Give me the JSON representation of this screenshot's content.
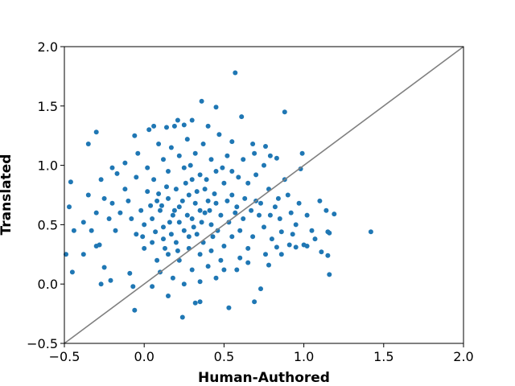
{
  "chart_data": {
    "type": "scatter",
    "title": "",
    "xlabel": "Human-Authored",
    "ylabel": "Translated",
    "xlim": [
      -0.5,
      2.0
    ],
    "ylim": [
      -0.5,
      2.0
    ],
    "xticks": [
      "−0.5",
      "0.0",
      "0.5",
      "1.0",
      "1.5",
      "2.0"
    ],
    "yticks": [
      "−0.5",
      "0.0",
      "0.5",
      "1.0",
      "1.5",
      "2.0"
    ],
    "xtick_values": [
      -0.5,
      0.0,
      0.5,
      1.0,
      1.5,
      2.0
    ],
    "ytick_values": [
      -0.5,
      0.0,
      0.5,
      1.0,
      1.5,
      2.0
    ],
    "grid": false,
    "marker_color": "#1f77b4",
    "reference_line": {
      "from": [
        -0.5,
        -0.5
      ],
      "to": [
        2.0,
        2.0
      ],
      "color": "#808080"
    },
    "series": [
      {
        "values": [
          [
            0.57,
            1.78
          ],
          [
            0.36,
            1.54
          ],
          [
            0.45,
            1.49
          ],
          [
            0.61,
            1.41
          ],
          [
            0.88,
            1.45
          ],
          [
            0.19,
            1.33
          ],
          [
            0.06,
            1.33
          ],
          [
            0.03,
            1.3
          ],
          [
            -0.06,
            1.25
          ],
          [
            -0.3,
            1.28
          ],
          [
            -0.35,
            1.18
          ],
          [
            0.21,
            1.38
          ],
          [
            0.14,
            1.32
          ],
          [
            0.25,
            1.34
          ],
          [
            0.3,
            1.38
          ],
          [
            0.4,
            1.33
          ],
          [
            0.47,
            1.26
          ],
          [
            0.55,
            1.2
          ],
          [
            0.68,
            1.18
          ],
          [
            0.76,
            1.16
          ],
          [
            0.83,
            1.06
          ],
          [
            0.99,
            1.1
          ],
          [
            0.98,
            0.97
          ],
          [
            1.1,
            0.7
          ],
          [
            1.14,
            0.62
          ],
          [
            1.19,
            0.59
          ],
          [
            1.15,
            0.44
          ],
          [
            1.16,
            0.43
          ],
          [
            1.07,
            0.38
          ],
          [
            1.02,
            0.32
          ],
          [
            1.0,
            0.33
          ],
          [
            0.95,
            0.31
          ],
          [
            0.91,
            0.33
          ],
          [
            0.86,
            0.44
          ],
          [
            0.83,
            0.31
          ],
          [
            1.11,
            0.27
          ],
          [
            1.15,
            0.24
          ],
          [
            1.16,
            0.08
          ],
          [
            0.78,
            0.16
          ],
          [
            0.73,
            -0.04
          ],
          [
            0.69,
            -0.15
          ],
          [
            0.53,
            -0.2
          ],
          [
            0.35,
            -0.15
          ],
          [
            0.32,
            -0.16
          ],
          [
            0.24,
            -0.28
          ],
          [
            0.15,
            -0.1
          ],
          [
            0.05,
            -0.02
          ],
          [
            -0.06,
            -0.22
          ],
          [
            -0.07,
            -0.02
          ],
          [
            -0.21,
            0.03
          ],
          [
            -0.27,
            0.0
          ],
          [
            -0.09,
            0.09
          ],
          [
            -0.38,
            0.25
          ],
          [
            -0.45,
            0.1
          ],
          [
            -0.49,
            0.25
          ],
          [
            -0.44,
            0.45
          ],
          [
            -0.47,
            0.65
          ],
          [
            -0.46,
            0.86
          ],
          [
            -0.35,
            0.75
          ],
          [
            -0.3,
            0.32
          ],
          [
            -0.28,
            0.33
          ],
          [
            -0.25,
            0.14
          ],
          [
            -0.2,
            0.68
          ],
          [
            -0.17,
            0.93
          ],
          [
            -0.12,
            1.02
          ],
          [
            1.42,
            0.44
          ],
          [
            0.4,
            0.7
          ],
          [
            0.35,
            0.62
          ],
          [
            0.3,
            0.55
          ],
          [
            0.28,
            0.75
          ],
          [
            0.22,
            0.65
          ],
          [
            0.18,
            0.58
          ],
          [
            0.1,
            0.62
          ],
          [
            0.12,
            0.48
          ],
          [
            0.25,
            0.45
          ],
          [
            0.33,
            0.42
          ],
          [
            0.42,
            0.5
          ],
          [
            0.48,
            0.58
          ],
          [
            0.45,
            0.68
          ],
          [
            0.38,
            0.8
          ],
          [
            0.3,
            0.88
          ],
          [
            0.2,
            0.8
          ],
          [
            0.15,
            0.72
          ],
          [
            0.08,
            0.7
          ],
          [
            0.05,
            0.55
          ],
          [
            0.0,
            0.5
          ],
          [
            -0.02,
            0.62
          ],
          [
            0.02,
            0.78
          ],
          [
            0.06,
            0.88
          ],
          [
            0.15,
            0.95
          ],
          [
            0.25,
            0.98
          ],
          [
            0.35,
            0.92
          ],
          [
            0.5,
            0.85
          ],
          [
            0.55,
            0.75
          ],
          [
            0.58,
            0.65
          ],
          [
            0.62,
            0.55
          ],
          [
            0.6,
            0.45
          ],
          [
            0.55,
            0.4
          ],
          [
            0.5,
            0.32
          ],
          [
            0.42,
            0.28
          ],
          [
            0.35,
            0.25
          ],
          [
            0.28,
            0.3
          ],
          [
            0.2,
            0.35
          ],
          [
            0.12,
            0.38
          ],
          [
            0.05,
            0.35
          ],
          [
            0.0,
            0.3
          ],
          [
            -0.05,
            0.42
          ],
          [
            -0.08,
            0.55
          ],
          [
            -0.1,
            0.7
          ],
          [
            -0.12,
            0.8
          ],
          [
            -0.15,
            0.6
          ],
          [
            -0.18,
            0.45
          ],
          [
            0.65,
            0.85
          ],
          [
            0.7,
            0.7
          ],
          [
            0.72,
            0.58
          ],
          [
            0.75,
            0.48
          ],
          [
            0.68,
            0.4
          ],
          [
            0.65,
            0.3
          ],
          [
            0.7,
            0.92
          ],
          [
            0.78,
            0.8
          ],
          [
            0.82,
            0.65
          ],
          [
            0.85,
            0.55
          ],
          [
            0.8,
            0.38
          ],
          [
            0.9,
            0.75
          ],
          [
            0.92,
            0.6
          ],
          [
            0.95,
            0.5
          ],
          [
            0.88,
            0.88
          ],
          [
            0.75,
            1.0
          ],
          [
            0.62,
            1.05
          ],
          [
            0.52,
            1.08
          ],
          [
            0.42,
            1.05
          ],
          [
            0.32,
            1.1
          ],
          [
            0.22,
            1.08
          ],
          [
            0.12,
            1.05
          ],
          [
            0.02,
            0.98
          ],
          [
            -0.05,
            0.9
          ],
          [
            0.48,
            0.2
          ],
          [
            0.4,
            0.15
          ],
          [
            0.3,
            0.12
          ],
          [
            0.22,
            0.2
          ],
          [
            0.15,
            0.25
          ],
          [
            0.08,
            0.2
          ],
          [
            0.58,
            0.12
          ],
          [
            0.65,
            0.18
          ],
          [
            0.45,
            0.05
          ],
          [
            0.35,
            0.02
          ],
          [
            0.25,
            0.0
          ],
          [
            0.18,
            0.05
          ],
          [
            0.1,
            0.1
          ],
          [
            0.55,
            0.95
          ],
          [
            0.45,
            0.95
          ],
          [
            0.38,
            0.6
          ],
          [
            0.32,
            0.68
          ],
          [
            0.27,
            0.58
          ],
          [
            0.24,
            0.7
          ],
          [
            0.19,
            0.62
          ],
          [
            0.16,
            0.52
          ],
          [
            0.11,
            0.66
          ],
          [
            0.36,
            0.52
          ],
          [
            0.41,
            0.62
          ],
          [
            0.44,
            0.76
          ],
          [
            0.52,
            0.7
          ],
          [
            0.33,
            0.78
          ],
          [
            0.26,
            0.85
          ],
          [
            0.14,
            0.82
          ],
          [
            0.09,
            0.76
          ],
          [
            0.04,
            0.66
          ],
          [
            0.31,
            0.48
          ],
          [
            0.22,
            0.52
          ],
          [
            0.17,
            0.42
          ],
          [
            0.46,
            0.45
          ],
          [
            0.53,
            0.52
          ],
          [
            0.57,
            0.6
          ],
          [
            0.63,
            0.72
          ],
          [
            0.67,
            0.62
          ],
          [
            0.73,
            0.68
          ],
          [
            0.79,
            0.58
          ],
          [
            0.84,
            0.72
          ],
          [
            -0.22,
            0.55
          ],
          [
            -0.25,
            0.72
          ],
          [
            -0.3,
            0.6
          ],
          [
            -0.33,
            0.45
          ],
          [
            -0.27,
            0.88
          ],
          [
            -0.2,
            0.98
          ],
          [
            -0.38,
            0.52
          ],
          [
            0.97,
            0.68
          ],
          [
            1.02,
            0.58
          ],
          [
            1.05,
            0.45
          ],
          [
            0.93,
            0.42
          ],
          [
            0.86,
            0.25
          ],
          [
            0.76,
            0.25
          ],
          [
            0.6,
            0.22
          ],
          [
            0.5,
            0.12
          ],
          [
            0.28,
            0.4
          ],
          [
            0.37,
            0.35
          ],
          [
            0.43,
            0.4
          ],
          [
            0.21,
            0.28
          ],
          [
            0.13,
            0.3
          ],
          [
            0.07,
            0.44
          ],
          [
            -0.01,
            0.4
          ],
          [
            0.39,
            0.88
          ],
          [
            0.49,
            0.98
          ],
          [
            0.59,
            0.9
          ],
          [
            0.69,
            1.1
          ],
          [
            0.79,
            1.08
          ],
          [
            0.29,
            1.0
          ],
          [
            0.17,
            1.15
          ],
          [
            0.27,
            1.22
          ],
          [
            0.37,
            1.18
          ],
          [
            0.09,
            1.18
          ],
          [
            -0.04,
            1.1
          ]
        ]
      }
    ]
  }
}
